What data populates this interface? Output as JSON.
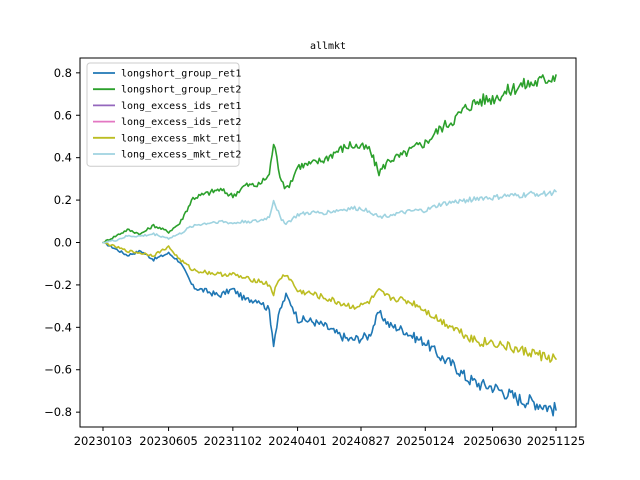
{
  "chart_data": {
    "type": "line",
    "title": "allmkt",
    "xlabel": "",
    "ylabel": "",
    "x_ticks": [
      "20230103",
      "20230605",
      "20231102",
      "20240401",
      "20240827",
      "20250124",
      "20250630",
      "20251125"
    ],
    "x_range": [
      "20230103",
      "20251125"
    ],
    "y_ticks": [
      0.8,
      0.6,
      0.4,
      0.2,
      0.0,
      -0.2,
      -0.4,
      -0.6,
      -0.8
    ],
    "ylim": [
      -0.87,
      0.87
    ],
    "grid": false,
    "legend_position": "top-left",
    "series": [
      {
        "name": "longshort_group_ret1",
        "color": "#1f77b4",
        "points": [
          [
            "20230103",
            0.0
          ],
          [
            "20230201",
            -0.03
          ],
          [
            "20230301",
            -0.06
          ],
          [
            "20230401",
            -0.04
          ],
          [
            "20230501",
            -0.08
          ],
          [
            "20230605",
            -0.05
          ],
          [
            "20230701",
            -0.09
          ],
          [
            "20230801",
            -0.21
          ],
          [
            "20230901",
            -0.23
          ],
          [
            "20231001",
            -0.25
          ],
          [
            "20231102",
            -0.22
          ],
          [
            "20231201",
            -0.27
          ],
          [
            "20240101",
            -0.27
          ],
          [
            "20240126",
            -0.32
          ],
          [
            "20240205",
            -0.47
          ],
          [
            "20240220",
            -0.32
          ],
          [
            "20240305",
            -0.25
          ],
          [
            "20240320",
            -0.3
          ],
          [
            "20240401",
            -0.36
          ],
          [
            "20240501",
            -0.37
          ],
          [
            "20240601",
            -0.39
          ],
          [
            "20240701",
            -0.43
          ],
          [
            "20240801",
            -0.46
          ],
          [
            "20240827",
            -0.45
          ],
          [
            "20240915",
            -0.44
          ],
          [
            "20241008",
            -0.33
          ],
          [
            "20241101",
            -0.39
          ],
          [
            "20241201",
            -0.41
          ],
          [
            "20250101",
            -0.45
          ],
          [
            "20250124",
            -0.47
          ],
          [
            "20250301",
            -0.54
          ],
          [
            "20250401",
            -0.58
          ],
          [
            "20250501",
            -0.64
          ],
          [
            "20250601",
            -0.67
          ],
          [
            "20250630",
            -0.68
          ],
          [
            "20250801",
            -0.71
          ],
          [
            "20250901",
            -0.74
          ],
          [
            "20251001",
            -0.75
          ],
          [
            "20251101",
            -0.77
          ],
          [
            "20251125",
            -0.79
          ]
        ]
      },
      {
        "name": "longshort_group_ret2",
        "color": "#2ca02c",
        "points": [
          [
            "20230103",
            0.0
          ],
          [
            "20230201",
            0.03
          ],
          [
            "20230301",
            0.06
          ],
          [
            "20230401",
            0.04
          ],
          [
            "20230501",
            0.08
          ],
          [
            "20230605",
            0.05
          ],
          [
            "20230701",
            0.09
          ],
          [
            "20230801",
            0.21
          ],
          [
            "20230901",
            0.23
          ],
          [
            "20231001",
            0.25
          ],
          [
            "20231102",
            0.22
          ],
          [
            "20231201",
            0.27
          ],
          [
            "20240101",
            0.27
          ],
          [
            "20240126",
            0.32
          ],
          [
            "20240205",
            0.47
          ],
          [
            "20240220",
            0.32
          ],
          [
            "20240305",
            0.25
          ],
          [
            "20240320",
            0.3
          ],
          [
            "20240401",
            0.36
          ],
          [
            "20240501",
            0.37
          ],
          [
            "20240601",
            0.39
          ],
          [
            "20240701",
            0.43
          ],
          [
            "20240801",
            0.46
          ],
          [
            "20240827",
            0.45
          ],
          [
            "20240915",
            0.44
          ],
          [
            "20241008",
            0.33
          ],
          [
            "20241101",
            0.39
          ],
          [
            "20241201",
            0.41
          ],
          [
            "20250101",
            0.45
          ],
          [
            "20250124",
            0.47
          ],
          [
            "20250301",
            0.54
          ],
          [
            "20250401",
            0.58
          ],
          [
            "20250501",
            0.64
          ],
          [
            "20250601",
            0.67
          ],
          [
            "20250630",
            0.68
          ],
          [
            "20250801",
            0.71
          ],
          [
            "20250901",
            0.74
          ],
          [
            "20251001",
            0.75
          ],
          [
            "20251101",
            0.77
          ],
          [
            "20251125",
            0.79
          ]
        ]
      },
      {
        "name": "long_excess_ids_ret1",
        "color": "#9467bd",
        "points": []
      },
      {
        "name": "long_excess_ids_ret2",
        "color": "#e377c2",
        "points": []
      },
      {
        "name": "long_excess_mkt_ret1",
        "color": "#bcbd22",
        "points": [
          [
            "20230103",
            0.0
          ],
          [
            "20230201",
            -0.02
          ],
          [
            "20230301",
            -0.04
          ],
          [
            "20230401",
            -0.05
          ],
          [
            "20230501",
            -0.06
          ],
          [
            "20230605",
            -0.02
          ],
          [
            "20230701",
            -0.08
          ],
          [
            "20230801",
            -0.13
          ],
          [
            "20230901",
            -0.14
          ],
          [
            "20231001",
            -0.15
          ],
          [
            "20231102",
            -0.15
          ],
          [
            "20231201",
            -0.17
          ],
          [
            "20240101",
            -0.18
          ],
          [
            "20240126",
            -0.2
          ],
          [
            "20240205",
            -0.24
          ],
          [
            "20240220",
            -0.17
          ],
          [
            "20240305",
            -0.15
          ],
          [
            "20240320",
            -0.19
          ],
          [
            "20240401",
            -0.23
          ],
          [
            "20240501",
            -0.24
          ],
          [
            "20240601",
            -0.26
          ],
          [
            "20240701",
            -0.28
          ],
          [
            "20240801",
            -0.3
          ],
          [
            "20240827",
            -0.3
          ],
          [
            "20240915",
            -0.28
          ],
          [
            "20241008",
            -0.23
          ],
          [
            "20241101",
            -0.26
          ],
          [
            "20241201",
            -0.27
          ],
          [
            "20250101",
            -0.29
          ],
          [
            "20250124",
            -0.32
          ],
          [
            "20250301",
            -0.37
          ],
          [
            "20250401",
            -0.4
          ],
          [
            "20250501",
            -0.44
          ],
          [
            "20250601",
            -0.47
          ],
          [
            "20250630",
            -0.47
          ],
          [
            "20250801",
            -0.49
          ],
          [
            "20250901",
            -0.51
          ],
          [
            "20251001",
            -0.52
          ],
          [
            "20251101",
            -0.54
          ],
          [
            "20251125",
            -0.55
          ]
        ]
      },
      {
        "name": "long_excess_mkt_ret2",
        "color": "#9fd3e0",
        "points": [
          [
            "20230103",
            0.0
          ],
          [
            "20230201",
            0.01
          ],
          [
            "20230301",
            0.03
          ],
          [
            "20230401",
            0.03
          ],
          [
            "20230501",
            0.04
          ],
          [
            "20230605",
            0.02
          ],
          [
            "20230701",
            0.04
          ],
          [
            "20230801",
            0.08
          ],
          [
            "20230901",
            0.09
          ],
          [
            "20231001",
            0.1
          ],
          [
            "20231102",
            0.09
          ],
          [
            "20231201",
            0.1
          ],
          [
            "20240101",
            0.1
          ],
          [
            "20240126",
            0.12
          ],
          [
            "20240205",
            0.2
          ],
          [
            "20240220",
            0.12
          ],
          [
            "20240305",
            0.09
          ],
          [
            "20240320",
            0.11
          ],
          [
            "20240401",
            0.13
          ],
          [
            "20240501",
            0.14
          ],
          [
            "20240601",
            0.14
          ],
          [
            "20240701",
            0.15
          ],
          [
            "20240801",
            0.16
          ],
          [
            "20240827",
            0.16
          ],
          [
            "20240915",
            0.15
          ],
          [
            "20241008",
            0.12
          ],
          [
            "20241101",
            0.13
          ],
          [
            "20241201",
            0.14
          ],
          [
            "20250101",
            0.15
          ],
          [
            "20250124",
            0.15
          ],
          [
            "20250301",
            0.18
          ],
          [
            "20250401",
            0.19
          ],
          [
            "20250501",
            0.2
          ],
          [
            "20250601",
            0.21
          ],
          [
            "20250630",
            0.21
          ],
          [
            "20250801",
            0.22
          ],
          [
            "20250901",
            0.22
          ],
          [
            "20251001",
            0.23
          ],
          [
            "20251101",
            0.23
          ],
          [
            "20251125",
            0.24
          ]
        ]
      }
    ]
  }
}
